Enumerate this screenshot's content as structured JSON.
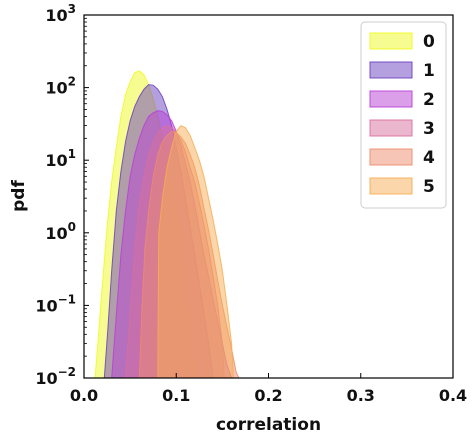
{
  "chart_data": {
    "type": "area",
    "title": "",
    "xlabel": "correlation",
    "ylabel": "pdf",
    "xlim": [
      0.0,
      0.4
    ],
    "ylim_log10": [
      -2,
      3
    ],
    "yscale": "log",
    "grid": false,
    "legend_position": "top-right",
    "x_ticks": [
      {
        "value": 0.0,
        "label": "0.0"
      },
      {
        "value": 0.1,
        "label": "0.1"
      },
      {
        "value": 0.2,
        "label": "0.2"
      },
      {
        "value": 0.3,
        "label": "0.3"
      },
      {
        "value": 0.4,
        "label": "0.4"
      }
    ],
    "y_ticks": [
      {
        "exp": -2,
        "base": "10",
        "sup": "−2"
      },
      {
        "exp": -1,
        "base": "10",
        "sup": "−1"
      },
      {
        "exp": 0,
        "base": "10",
        "sup": "0"
      },
      {
        "exp": 1,
        "base": "10",
        "sup": "1"
      },
      {
        "exp": 2,
        "base": "10",
        "sup": "2"
      },
      {
        "exp": 3,
        "base": "10",
        "sup": "3"
      }
    ],
    "series": [
      {
        "name": "0",
        "color": "#f0f921",
        "points": [
          [
            0.012,
            0.01
          ],
          [
            0.015,
            0.03
          ],
          [
            0.02,
            0.2
          ],
          [
            0.025,
            1.2
          ],
          [
            0.03,
            5
          ],
          [
            0.035,
            15
          ],
          [
            0.04,
            40
          ],
          [
            0.045,
            80
          ],
          [
            0.05,
            120
          ],
          [
            0.055,
            160
          ],
          [
            0.06,
            170
          ],
          [
            0.065,
            150
          ],
          [
            0.07,
            110
          ],
          [
            0.075,
            70
          ],
          [
            0.08,
            40
          ],
          [
            0.085,
            20
          ],
          [
            0.09,
            9
          ],
          [
            0.095,
            4
          ],
          [
            0.1,
            1.5
          ],
          [
            0.105,
            0.5
          ],
          [
            0.11,
            0.15
          ],
          [
            0.115,
            0.05
          ],
          [
            0.12,
            0.01
          ]
        ]
      },
      {
        "name": "1",
        "color": "#6a3fbf",
        "points": [
          [
            0.022,
            0.01
          ],
          [
            0.026,
            0.05
          ],
          [
            0.03,
            0.3
          ],
          [
            0.035,
            2
          ],
          [
            0.04,
            7
          ],
          [
            0.045,
            18
          ],
          [
            0.05,
            35
          ],
          [
            0.055,
            55
          ],
          [
            0.06,
            75
          ],
          [
            0.065,
            95
          ],
          [
            0.07,
            110
          ],
          [
            0.075,
            108
          ],
          [
            0.08,
            95
          ],
          [
            0.085,
            75
          ],
          [
            0.09,
            50
          ],
          [
            0.095,
            30
          ],
          [
            0.1,
            15
          ],
          [
            0.105,
            7
          ],
          [
            0.11,
            3
          ],
          [
            0.115,
            1.2
          ],
          [
            0.12,
            0.5
          ],
          [
            0.125,
            0.2
          ],
          [
            0.13,
            0.08
          ],
          [
            0.135,
            0.03
          ],
          [
            0.14,
            0.01
          ]
        ]
      },
      {
        "name": "2",
        "color": "#b83fd6",
        "points": [
          [
            0.03,
            0.01
          ],
          [
            0.034,
            0.05
          ],
          [
            0.04,
            0.5
          ],
          [
            0.045,
            2
          ],
          [
            0.05,
            6
          ],
          [
            0.055,
            12
          ],
          [
            0.06,
            20
          ],
          [
            0.065,
            30
          ],
          [
            0.07,
            40
          ],
          [
            0.075,
            45
          ],
          [
            0.08,
            48
          ],
          [
            0.085,
            47
          ],
          [
            0.09,
            42
          ],
          [
            0.095,
            35
          ],
          [
            0.1,
            25
          ],
          [
            0.105,
            16
          ],
          [
            0.11,
            9
          ],
          [
            0.115,
            5
          ],
          [
            0.12,
            2.5
          ],
          [
            0.125,
            1.1
          ],
          [
            0.13,
            0.5
          ],
          [
            0.135,
            0.25
          ],
          [
            0.14,
            0.12
          ],
          [
            0.145,
            0.06
          ],
          [
            0.15,
            0.03
          ],
          [
            0.155,
            0.015
          ],
          [
            0.16,
            0.01
          ]
        ]
      },
      {
        "name": "3",
        "color": "#d7709e",
        "points": [
          [
            0.045,
            0.01
          ],
          [
            0.05,
            0.08
          ],
          [
            0.055,
            0.6
          ],
          [
            0.06,
            2.5
          ],
          [
            0.065,
            6
          ],
          [
            0.07,
            12
          ],
          [
            0.075,
            18
          ],
          [
            0.08,
            24
          ],
          [
            0.085,
            28
          ],
          [
            0.09,
            30
          ],
          [
            0.095,
            28
          ],
          [
            0.1,
            24
          ],
          [
            0.105,
            19
          ],
          [
            0.11,
            13
          ],
          [
            0.115,
            8
          ],
          [
            0.12,
            5
          ],
          [
            0.125,
            2.6
          ],
          [
            0.13,
            1.3
          ],
          [
            0.135,
            0.6
          ],
          [
            0.14,
            0.25
          ],
          [
            0.145,
            0.1
          ],
          [
            0.15,
            0.03
          ],
          [
            0.152,
            0.01
          ]
        ]
      },
      {
        "name": "4",
        "color": "#ee8b6c",
        "points": [
          [
            0.06,
            0.01
          ],
          [
            0.063,
            0.1
          ],
          [
            0.066,
            0.6
          ],
          [
            0.07,
            2
          ],
          [
            0.075,
            6
          ],
          [
            0.08,
            12
          ],
          [
            0.085,
            18
          ],
          [
            0.09,
            22
          ],
          [
            0.095,
            25
          ],
          [
            0.1,
            24
          ],
          [
            0.105,
            21
          ],
          [
            0.11,
            17
          ],
          [
            0.115,
            12
          ],
          [
            0.12,
            8
          ],
          [
            0.125,
            4.5
          ],
          [
            0.13,
            2.2
          ],
          [
            0.135,
            1.1
          ],
          [
            0.14,
            0.5
          ],
          [
            0.145,
            0.22
          ],
          [
            0.15,
            0.1
          ],
          [
            0.155,
            0.05
          ],
          [
            0.16,
            0.025
          ],
          [
            0.165,
            0.012
          ],
          [
            0.168,
            0.01
          ]
        ]
      },
      {
        "name": "5",
        "color": "#f6ae55",
        "points": [
          [
            0.08,
            0.01
          ],
          [
            0.081,
            1
          ],
          [
            0.085,
            3
          ],
          [
            0.09,
            8
          ],
          [
            0.095,
            15
          ],
          [
            0.1,
            25
          ],
          [
            0.105,
            30
          ],
          [
            0.11,
            28
          ],
          [
            0.115,
            22
          ],
          [
            0.12,
            15
          ],
          [
            0.125,
            10
          ],
          [
            0.13,
            6
          ],
          [
            0.135,
            3
          ],
          [
            0.14,
            1.5
          ],
          [
            0.145,
            0.7
          ],
          [
            0.15,
            0.3
          ],
          [
            0.155,
            0.1
          ],
          [
            0.16,
            0.03
          ],
          [
            0.162,
            0.01
          ]
        ]
      }
    ]
  }
}
